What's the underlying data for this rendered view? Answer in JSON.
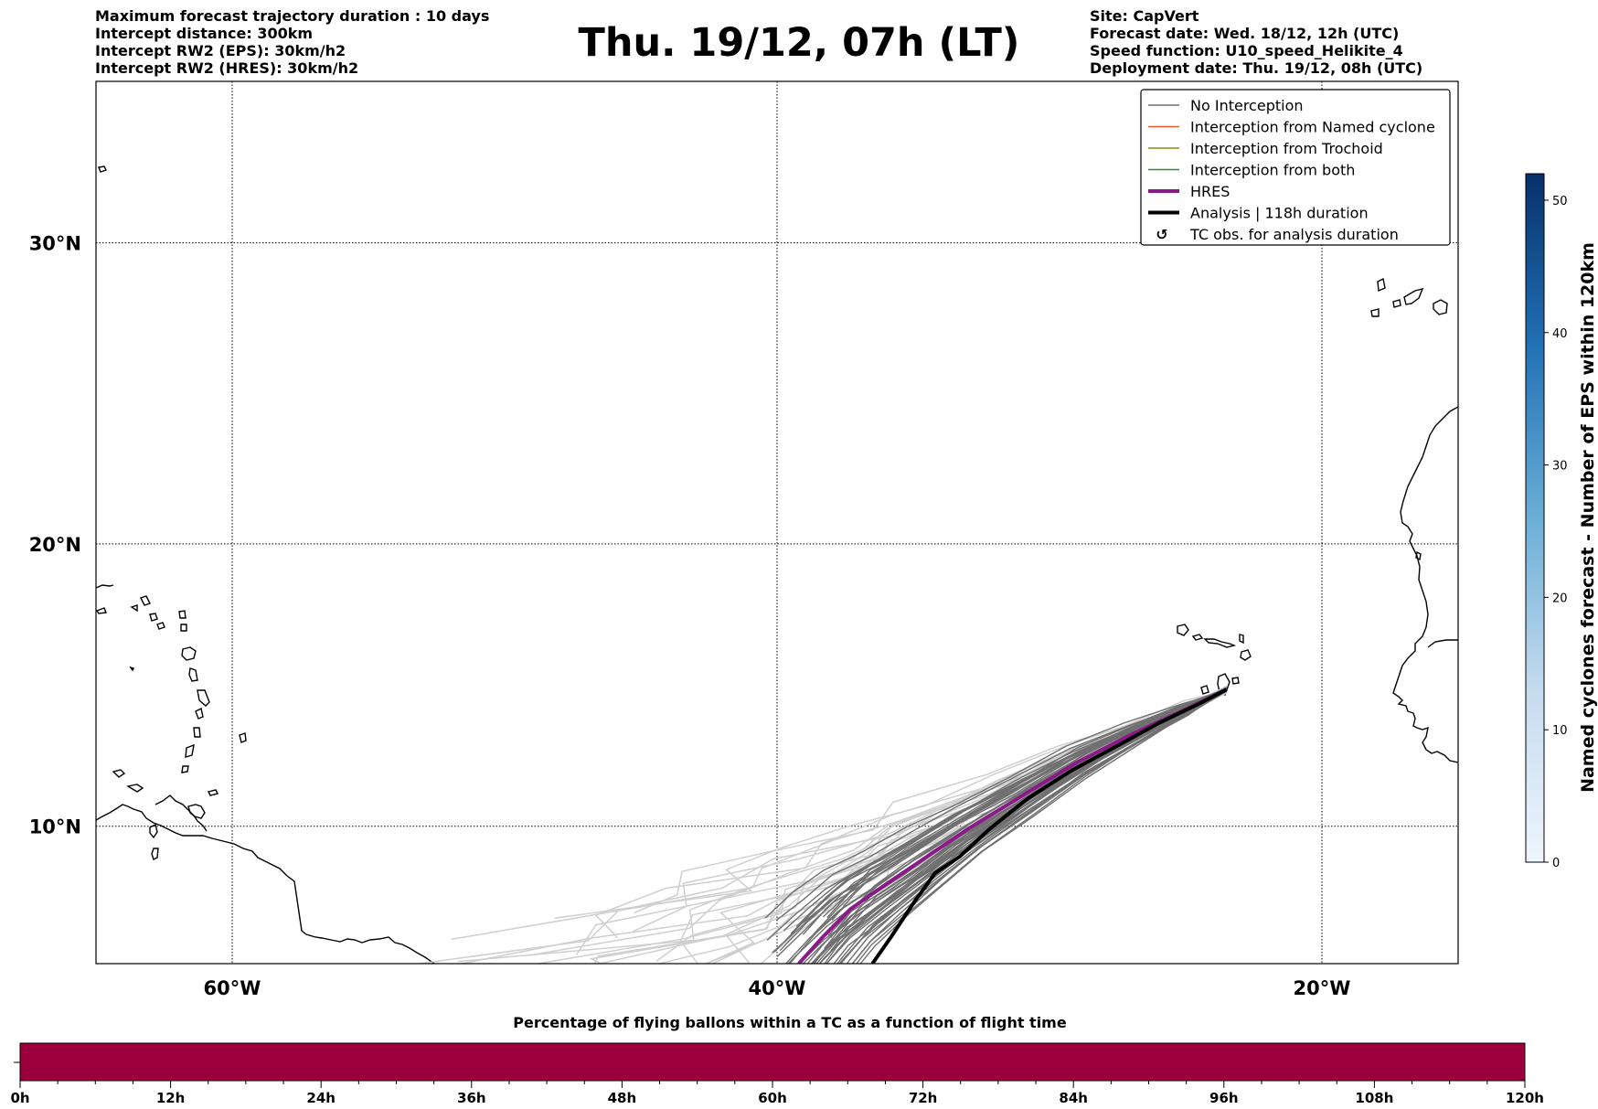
{
  "header": {
    "left_lines": [
      "Maximum forecast trajectory duration : 10 days",
      "Intercept distance: 300km",
      "Intercept RW2 (EPS):  30km/h2",
      "Intercept RW2 (HRES): 30km/h2"
    ],
    "title": "Thu. 19/12, 07h (LT)",
    "right_lines": [
      "Site: CapVert",
      "Forecast date: Wed. 18/12, 12h (UTC)",
      "Speed function: U10_speed_Helikite_4",
      "Deployment date: Thu. 19/12, 08h (UTC)"
    ]
  },
  "map": {
    "extent": {
      "lon_min": -65,
      "lon_max": -15,
      "lat_min": 5,
      "lat_max": 35
    },
    "lat_ticks": [
      {
        "value": 10,
        "label": "10°N"
      },
      {
        "value": 20,
        "label": "20°N"
      },
      {
        "value": 30,
        "label": "30°N"
      }
    ],
    "lon_ticks": [
      {
        "value": -60,
        "label": "60°W"
      },
      {
        "value": -40,
        "label": "40°W"
      },
      {
        "value": -20,
        "label": "20°W"
      }
    ],
    "gridlines": "dotted",
    "launch_site": {
      "lon": -23.5,
      "lat": 14.9
    },
    "analysis_track": [
      [
        -23.5,
        14.9
      ],
      [
        -24.5,
        14.4
      ],
      [
        -26.0,
        13.7
      ],
      [
        -27.5,
        12.9
      ],
      [
        -29.2,
        12.0
      ],
      [
        -30.8,
        11.0
      ],
      [
        -32.2,
        9.9
      ],
      [
        -33.3,
        8.9
      ],
      [
        -34.2,
        8.3
      ],
      [
        -35.0,
        7.2
      ],
      [
        -35.8,
        6.0
      ],
      [
        -36.5,
        5.0
      ]
    ],
    "hres_track": [
      [
        -23.5,
        14.9
      ],
      [
        -25.0,
        14.2
      ],
      [
        -27.0,
        13.3
      ],
      [
        -29.0,
        12.3
      ],
      [
        -31.0,
        11.1
      ],
      [
        -33.0,
        9.9
      ],
      [
        -34.5,
        8.9
      ],
      [
        -36.0,
        7.9
      ],
      [
        -37.3,
        7.0
      ],
      [
        -38.3,
        6.0
      ],
      [
        -39.2,
        5.0
      ]
    ],
    "legend": {
      "placement": "top-right",
      "entries": [
        {
          "label": "No Interception",
          "color": "#6e6e6e",
          "style": "thin"
        },
        {
          "label": "Interception from Named cyclone",
          "color": "#e8582a",
          "style": "thin"
        },
        {
          "label": "Interception from Trochoid",
          "color": "#8c8a10",
          "style": "thin"
        },
        {
          "label": "Interception from both",
          "color": "#2e8b3a",
          "style": "thin"
        },
        {
          "label": "HRES",
          "color": "#8b1a89",
          "style": "thick"
        },
        {
          "label": "Analysis | 118h duration",
          "color": "#000000",
          "style": "thick"
        },
        {
          "label": "TC obs. for analysis duration",
          "color": "#000000",
          "style": "marker"
        }
      ]
    }
  },
  "colorbar": {
    "label": "Named cyclones forecast - Number of EPS within 120km",
    "min": 0,
    "max": 52,
    "ticks": [
      0,
      10,
      20,
      30,
      40,
      50
    ],
    "color_low": "#e3eef9",
    "color_high": "#08306b"
  },
  "flight_bar": {
    "title": "Percentage of flying ballons within a TC as a function of flight time",
    "ticks": [
      "0h",
      "12h",
      "24h",
      "36h",
      "48h",
      "60h",
      "72h",
      "84h",
      "96h",
      "108h",
      "120h"
    ],
    "color": "#9b003c"
  }
}
